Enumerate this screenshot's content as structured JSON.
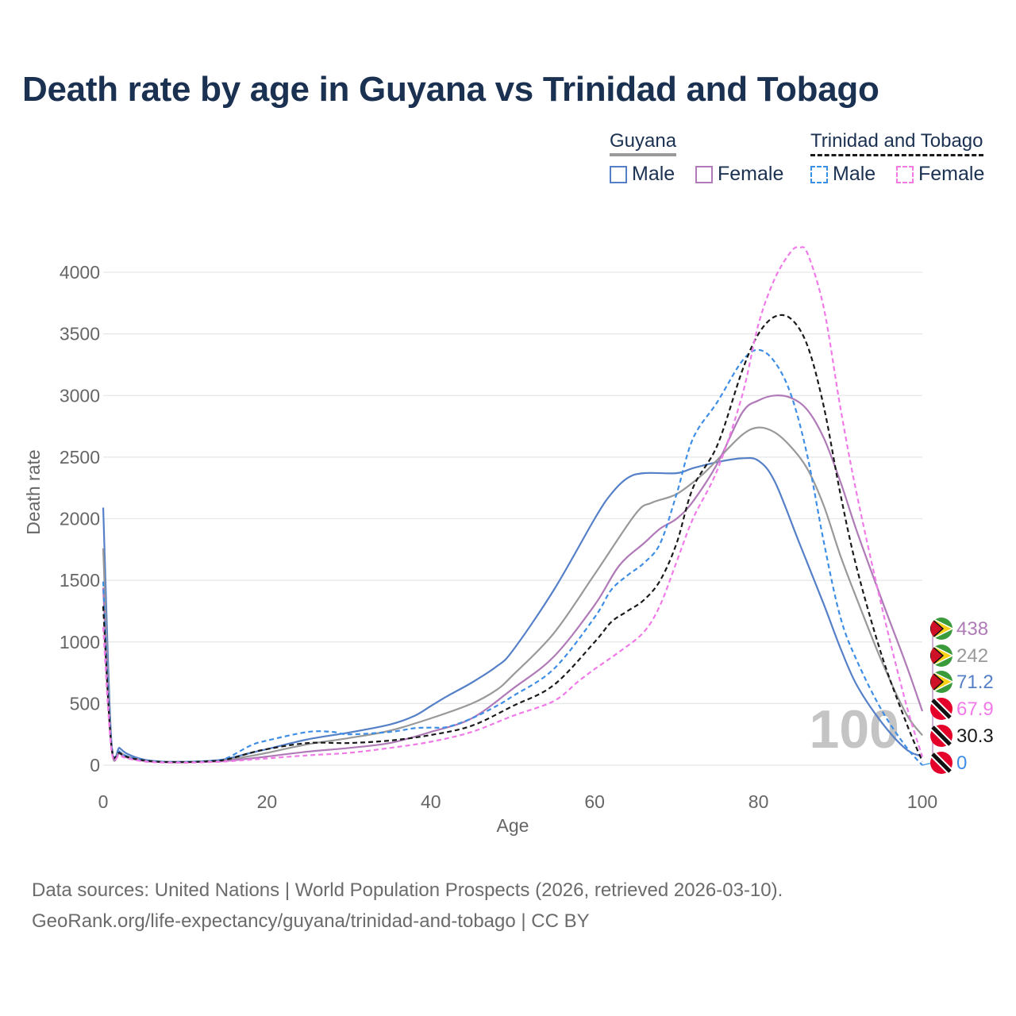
{
  "chart_data": {
    "type": "line",
    "title": "Death rate by age in Guyana vs Trinidad and Tobago",
    "xlabel": "Age",
    "ylabel": "Death rate",
    "xlim": [
      0,
      100
    ],
    "ylim": [
      0,
      4200
    ],
    "xticks": [
      "0",
      "20",
      "40",
      "60",
      "80",
      "100"
    ],
    "yticks": [
      "0",
      "500",
      "1000",
      "1500",
      "2000",
      "2500",
      "3000",
      "3500",
      "4000"
    ],
    "grid": true,
    "age_marker": "100",
    "legend": {
      "groups": [
        {
          "name": "Guyana",
          "items": [
            "Male",
            "Female"
          ]
        },
        {
          "name": "Trinidad and Tobago",
          "items": [
            "Male",
            "Female"
          ]
        }
      ]
    },
    "series": [
      {
        "name": "Guyana Male",
        "color": "#5580c8",
        "dash": false,
        "points": [
          [
            0,
            2090
          ],
          [
            1,
            200
          ],
          [
            2,
            140
          ],
          [
            3,
            90
          ],
          [
            5,
            45
          ],
          [
            7,
            30
          ],
          [
            10,
            28
          ],
          [
            13,
            35
          ],
          [
            15,
            50
          ],
          [
            18,
            100
          ],
          [
            20,
            130
          ],
          [
            25,
            210
          ],
          [
            30,
            265
          ],
          [
            35,
            330
          ],
          [
            38,
            400
          ],
          [
            40,
            480
          ],
          [
            42,
            560
          ],
          [
            45,
            670
          ],
          [
            48,
            800
          ],
          [
            50,
            930
          ],
          [
            55,
            1420
          ],
          [
            60,
            2000
          ],
          [
            62,
            2200
          ],
          [
            64,
            2330
          ],
          [
            66,
            2370
          ],
          [
            70,
            2370
          ],
          [
            72,
            2410
          ],
          [
            75,
            2460
          ],
          [
            78,
            2490
          ],
          [
            80,
            2470
          ],
          [
            82,
            2300
          ],
          [
            85,
            1800
          ],
          [
            88,
            1300
          ],
          [
            90,
            950
          ],
          [
            92,
            650
          ],
          [
            95,
            350
          ],
          [
            98,
            130
          ],
          [
            100,
            71.2
          ]
        ]
      },
      {
        "name": "Guyana Both",
        "color": "#999999",
        "dash": false,
        "points": [
          [
            0,
            1760
          ],
          [
            1,
            170
          ],
          [
            2,
            110
          ],
          [
            3,
            70
          ],
          [
            5,
            40
          ],
          [
            7,
            28
          ],
          [
            10,
            26
          ],
          [
            13,
            32
          ],
          [
            15,
            42
          ],
          [
            18,
            75
          ],
          [
            20,
            100
          ],
          [
            25,
            170
          ],
          [
            30,
            220
          ],
          [
            35,
            280
          ],
          [
            40,
            380
          ],
          [
            45,
            500
          ],
          [
            48,
            610
          ],
          [
            50,
            730
          ],
          [
            55,
            1070
          ],
          [
            60,
            1550
          ],
          [
            65,
            2040
          ],
          [
            67,
            2130
          ],
          [
            70,
            2200
          ],
          [
            73,
            2350
          ],
          [
            75,
            2480
          ],
          [
            78,
            2680
          ],
          [
            80,
            2740
          ],
          [
            82,
            2700
          ],
          [
            84,
            2580
          ],
          [
            86,
            2400
          ],
          [
            88,
            2100
          ],
          [
            90,
            1700
          ],
          [
            92,
            1350
          ],
          [
            95,
            850
          ],
          [
            98,
            420
          ],
          [
            100,
            242
          ]
        ]
      },
      {
        "name": "Guyana Female",
        "color": "#b07ab8",
        "dash": false,
        "points": [
          [
            0,
            1440
          ],
          [
            1,
            150
          ],
          [
            2,
            95
          ],
          [
            3,
            60
          ],
          [
            5,
            35
          ],
          [
            7,
            25
          ],
          [
            10,
            24
          ],
          [
            13,
            28
          ],
          [
            15,
            35
          ],
          [
            18,
            55
          ],
          [
            20,
            70
          ],
          [
            25,
            110
          ],
          [
            30,
            140
          ],
          [
            35,
            180
          ],
          [
            40,
            270
          ],
          [
            45,
            380
          ],
          [
            50,
            620
          ],
          [
            55,
            880
          ],
          [
            60,
            1300
          ],
          [
            63,
            1620
          ],
          [
            66,
            1800
          ],
          [
            68,
            1920
          ],
          [
            70,
            2000
          ],
          [
            72,
            2140
          ],
          [
            75,
            2450
          ],
          [
            78,
            2860
          ],
          [
            80,
            2960
          ],
          [
            82,
            3000
          ],
          [
            84,
            2980
          ],
          [
            86,
            2880
          ],
          [
            88,
            2650
          ],
          [
            90,
            2300
          ],
          [
            92,
            1900
          ],
          [
            95,
            1350
          ],
          [
            98,
            820
          ],
          [
            100,
            438
          ]
        ]
      },
      {
        "name": "Trinidad and Tobago Male",
        "color": "#3f8ee6",
        "dash": true,
        "points": [
          [
            0,
            1490
          ],
          [
            1,
            180
          ],
          [
            2,
            110
          ],
          [
            3,
            70
          ],
          [
            5,
            40
          ],
          [
            7,
            28
          ],
          [
            10,
            27
          ],
          [
            13,
            35
          ],
          [
            15,
            55
          ],
          [
            18,
            160
          ],
          [
            20,
            200
          ],
          [
            25,
            270
          ],
          [
            28,
            270
          ],
          [
            30,
            250
          ],
          [
            35,
            270
          ],
          [
            38,
            300
          ],
          [
            40,
            305
          ],
          [
            42,
            310
          ],
          [
            45,
            380
          ],
          [
            48,
            480
          ],
          [
            50,
            560
          ],
          [
            55,
            780
          ],
          [
            60,
            1200
          ],
          [
            62,
            1420
          ],
          [
            64,
            1540
          ],
          [
            66,
            1640
          ],
          [
            68,
            1800
          ],
          [
            70,
            2200
          ],
          [
            72,
            2650
          ],
          [
            75,
            2950
          ],
          [
            78,
            3280
          ],
          [
            80,
            3370
          ],
          [
            82,
            3270
          ],
          [
            84,
            3000
          ],
          [
            86,
            2500
          ],
          [
            88,
            1800
          ],
          [
            90,
            1200
          ],
          [
            92,
            850
          ],
          [
            95,
            450
          ],
          [
            98,
            150
          ],
          [
            100,
            0
          ]
        ]
      },
      {
        "name": "Trinidad and Tobago Both",
        "color": "#1a1a1a",
        "dash": true,
        "points": [
          [
            0,
            1290
          ],
          [
            1,
            160
          ],
          [
            2,
            100
          ],
          [
            3,
            65
          ],
          [
            5,
            38
          ],
          [
            7,
            27
          ],
          [
            10,
            25
          ],
          [
            13,
            32
          ],
          [
            15,
            45
          ],
          [
            18,
            100
          ],
          [
            20,
            130
          ],
          [
            25,
            180
          ],
          [
            30,
            180
          ],
          [
            35,
            200
          ],
          [
            40,
            245
          ],
          [
            45,
            320
          ],
          [
            50,
            480
          ],
          [
            55,
            650
          ],
          [
            60,
            1000
          ],
          [
            62,
            1160
          ],
          [
            64,
            1250
          ],
          [
            66,
            1340
          ],
          [
            68,
            1500
          ],
          [
            70,
            1800
          ],
          [
            72,
            2250
          ],
          [
            75,
            2600
          ],
          [
            78,
            3200
          ],
          [
            80,
            3500
          ],
          [
            82,
            3640
          ],
          [
            84,
            3620
          ],
          [
            86,
            3400
          ],
          [
            88,
            2900
          ],
          [
            90,
            2200
          ],
          [
            92,
            1600
          ],
          [
            95,
            900
          ],
          [
            98,
            350
          ],
          [
            100,
            30.3
          ]
        ]
      },
      {
        "name": "Trinidad and Tobago Female",
        "color": "#f07ae8",
        "dash": true,
        "points": [
          [
            0,
            1120
          ],
          [
            1,
            130
          ],
          [
            2,
            80
          ],
          [
            3,
            55
          ],
          [
            5,
            30
          ],
          [
            7,
            22
          ],
          [
            10,
            20
          ],
          [
            13,
            25
          ],
          [
            15,
            30
          ],
          [
            18,
            45
          ],
          [
            20,
            55
          ],
          [
            25,
            80
          ],
          [
            30,
            100
          ],
          [
            35,
            140
          ],
          [
            40,
            190
          ],
          [
            45,
            270
          ],
          [
            50,
            400
          ],
          [
            55,
            520
          ],
          [
            58,
            680
          ],
          [
            60,
            780
          ],
          [
            63,
            920
          ],
          [
            66,
            1080
          ],
          [
            68,
            1300
          ],
          [
            70,
            1650
          ],
          [
            72,
            2000
          ],
          [
            75,
            2400
          ],
          [
            78,
            3000
          ],
          [
            80,
            3580
          ],
          [
            82,
            3950
          ],
          [
            84,
            4170
          ],
          [
            85,
            4200
          ],
          [
            86,
            4150
          ],
          [
            88,
            3700
          ],
          [
            90,
            2900
          ],
          [
            92,
            2200
          ],
          [
            95,
            1300
          ],
          [
            98,
            500
          ],
          [
            100,
            67.9
          ]
        ]
      }
    ],
    "end_labels": [
      {
        "value": "438",
        "color": "#b07ab8",
        "country": "Guyana"
      },
      {
        "value": "242",
        "color": "#999999",
        "country": "Guyana"
      },
      {
        "value": "71.2",
        "color": "#5580c8",
        "country": "Guyana"
      },
      {
        "value": "67.9",
        "color": "#f07ae8",
        "country": "Trinidad and Tobago"
      },
      {
        "value": "30.3",
        "color": "#1a1a1a",
        "country": "Trinidad and Tobago"
      },
      {
        "value": "0",
        "color": "#3f8ee6",
        "country": "Trinidad and Tobago"
      }
    ]
  },
  "legend_swatches": {
    "guyana_male": "#5580c8",
    "guyana_female": "#b07ab8",
    "tt_male": "#3f8ee6",
    "tt_female": "#f07ae8",
    "guyana_line": "#999999",
    "tt_line": "#1a1a1a"
  },
  "source": {
    "line1": "Data sources: United Nations | World Population Prospects (2026, retrieved 2026-03-10).",
    "line2": "GeoRank.org/life-expectancy/guyana/trinidad-and-tobago | CC BY"
  }
}
